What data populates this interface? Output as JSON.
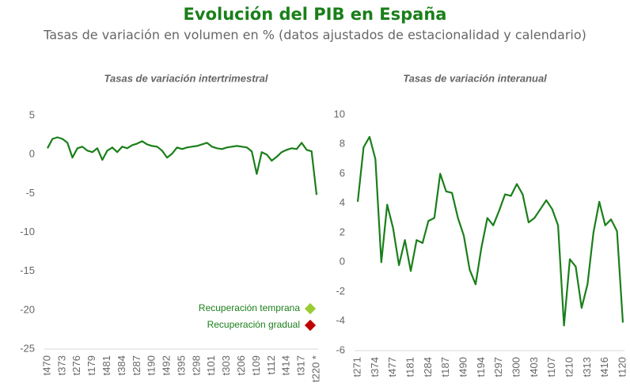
{
  "title": "Evolución del PIB en España",
  "subtitle": "Tasas de variación en volumen en % (datos ajustados de estacionalidad y calendario)",
  "chart_data": [
    {
      "type": "line",
      "title": "Tasas de variación intertrimestral",
      "categories": [
        "t470",
        null,
        null,
        "t373",
        null,
        null,
        "t276",
        null,
        null,
        "t179",
        null,
        null,
        "t481",
        null,
        null,
        "t384",
        null,
        null,
        "t287",
        null,
        null,
        "t190",
        null,
        null,
        "t492",
        null,
        null,
        "t395",
        null,
        null,
        "t298",
        null,
        null,
        "t101",
        null,
        null,
        "t303",
        null,
        null,
        "t206",
        null,
        null,
        "t109",
        null,
        null,
        "t112",
        null,
        null,
        "t414",
        null,
        null,
        "t317",
        null,
        null,
        "t220 *"
      ],
      "series": [
        {
          "name": "Tasas de variación intertrimestral",
          "color": "#1a7f1a",
          "values": [
            0.8,
            2.0,
            2.2,
            2.0,
            1.5,
            -0.4,
            0.8,
            1.0,
            0.5,
            0.3,
            0.8,
            -0.7,
            0.5,
            0.9,
            0.3,
            1.0,
            0.8,
            1.2,
            1.4,
            1.7,
            1.3,
            1.1,
            1.0,
            0.5,
            -0.4,
            0.1,
            0.9,
            0.7,
            0.9,
            1.0,
            1.1,
            1.3,
            1.5,
            1.0,
            0.8,
            0.7,
            0.9,
            1.0,
            1.1,
            1.0,
            0.9,
            0.4,
            -2.5,
            0.3,
            0.0,
            -0.8,
            -0.3,
            0.3,
            0.6,
            0.8,
            0.7,
            1.5,
            0.6,
            0.4,
            -5.2
          ]
        }
      ],
      "ylim": [
        -25,
        5
      ],
      "yticks": [
        -25,
        -20,
        -15,
        -10,
        -5,
        0,
        5
      ],
      "grid": false,
      "legend": [
        {
          "name": "Recuperación temprana",
          "color": "#9acd32"
        },
        {
          "name": "Recuperación gradual",
          "color": "#c00000"
        }
      ]
    },
    {
      "type": "line",
      "title": "Tasas de variación interanual",
      "categories": [
        "t271",
        null,
        null,
        "t374",
        null,
        null,
        "t477",
        null,
        null,
        "t181",
        null,
        null,
        "t284",
        null,
        null,
        "t187",
        null,
        null,
        "t490",
        null,
        null,
        "t194",
        null,
        null,
        "t297",
        null,
        null,
        "t300",
        null,
        null,
        "t403",
        null,
        null,
        "t107",
        null,
        null,
        "t210",
        null,
        null,
        "t313",
        null,
        null,
        "t416",
        null,
        null,
        "t120"
      ],
      "series": [
        {
          "name": "Tasas de variación interanual",
          "color": "#1a7f1a",
          "values": [
            4.1,
            7.8,
            8.5,
            7.0,
            0.0,
            3.9,
            2.3,
            -0.2,
            1.5,
            -0.6,
            1.5,
            1.3,
            2.8,
            3.0,
            6.0,
            4.8,
            4.7,
            3.0,
            1.8,
            -0.5,
            -1.5,
            1.0,
            3.0,
            2.5,
            3.5,
            4.6,
            4.5,
            5.3,
            4.6,
            2.7,
            3.0,
            3.6,
            4.2,
            3.6,
            2.5,
            -4.3,
            0.2,
            -0.3,
            -3.1,
            -1.5,
            2.0,
            4.1,
            2.5,
            2.9,
            2.1,
            -4.1
          ]
        }
      ],
      "ylim": [
        -6,
        10
      ],
      "yticks": [
        -6,
        -4,
        -2,
        0,
        2,
        4,
        6,
        8,
        10
      ],
      "grid": false
    }
  ]
}
